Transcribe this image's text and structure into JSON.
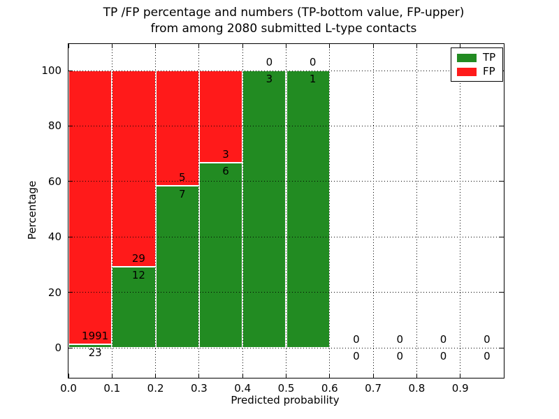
{
  "title": {
    "line1": "TP /FP percentage and numbers (TP-bottom value, FP-upper)",
    "line2": "from among 2080 submitted L-type contacts"
  },
  "chart_data": {
    "type": "bar",
    "stacked": true,
    "title": "TP /FP percentage and numbers (TP-bottom value, FP-upper) from among 2080 submitted L-type contacts",
    "xlabel": "Predicted probability",
    "ylabel": "Percentage",
    "x_tick_labels": [
      "0.0",
      "0.1",
      "0.2",
      "0.3",
      "0.4",
      "0.5",
      "0.6",
      "0.7",
      "0.8",
      "0.9"
    ],
    "y_ticks": [
      0,
      20,
      40,
      60,
      80,
      100
    ],
    "xlim": [
      0.0,
      1.0
    ],
    "ylim": [
      -11,
      110
    ],
    "bin_width": 0.1,
    "grid": true,
    "total_contacts": 2080,
    "series": [
      {
        "name": "TP",
        "color": "#228b22",
        "counts": [
          23,
          12,
          7,
          6,
          3,
          1,
          0,
          0,
          0,
          0
        ]
      },
      {
        "name": "FP",
        "color": "#ff1a1a",
        "counts": [
          1991,
          29,
          5,
          3,
          0,
          0,
          0,
          0,
          0,
          0
        ]
      }
    ],
    "tp_percent": [
      1.14,
      29.27,
      58.33,
      66.67,
      100,
      100,
      0,
      0,
      0,
      0
    ],
    "legend": {
      "position": "upper right",
      "entries": [
        {
          "label": "TP",
          "color": "#228b22"
        },
        {
          "label": "FP",
          "color": "#ff1a1a"
        }
      ]
    }
  }
}
